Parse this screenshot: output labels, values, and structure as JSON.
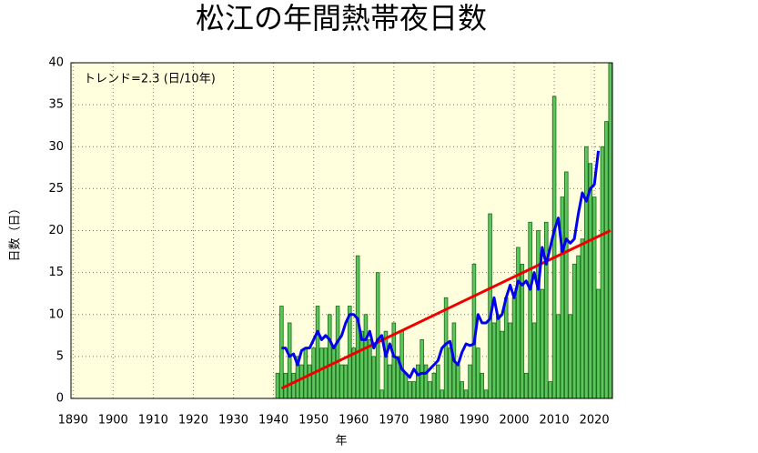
{
  "chart_data": {
    "type": "bar",
    "title": "松江の年間熱帯夜日数",
    "xlabel": "年",
    "ylabel": "日数（日）",
    "annotation": "トレンド=2.3 (日/10年)",
    "x": [
      1941,
      1942,
      1943,
      1944,
      1945,
      1946,
      1947,
      1948,
      1949,
      1950,
      1951,
      1952,
      1953,
      1954,
      1955,
      1956,
      1957,
      1958,
      1959,
      1960,
      1961,
      1962,
      1963,
      1964,
      1965,
      1966,
      1967,
      1968,
      1969,
      1970,
      1971,
      1972,
      1973,
      1974,
      1975,
      1976,
      1977,
      1978,
      1979,
      1980,
      1981,
      1982,
      1983,
      1984,
      1985,
      1986,
      1987,
      1988,
      1989,
      1990,
      1991,
      1992,
      1993,
      1994,
      1995,
      1996,
      1997,
      1998,
      1999,
      2000,
      2001,
      2002,
      2003,
      2004,
      2005,
      2006,
      2007,
      2008,
      2009,
      2010,
      2011,
      2012,
      2013,
      2014,
      2015,
      2016,
      2017,
      2018,
      2019,
      2020,
      2021,
      2022,
      2023,
      2024
    ],
    "values": [
      3,
      11,
      3,
      9,
      3,
      5,
      4,
      6,
      4,
      6,
      11,
      6,
      6,
      10,
      6,
      11,
      4,
      4,
      11,
      6,
      17,
      8,
      10,
      7,
      5,
      15,
      1,
      8,
      4,
      9,
      5,
      8,
      3,
      2,
      2,
      4,
      7,
      4,
      2,
      3,
      4,
      1,
      12,
      6,
      9,
      4,
      2,
      1,
      4,
      16,
      6,
      3,
      1,
      22,
      9,
      10,
      8,
      12,
      9,
      12,
      18,
      16,
      3,
      21,
      9,
      20,
      13,
      21,
      2,
      36,
      10,
      24,
      27,
      10,
      16,
      17,
      19,
      30,
      28,
      24,
      13,
      30,
      33,
      40
    ],
    "color": "#5cc65c",
    "moving_average": {
      "color": "#0000ee",
      "x": [
        1942,
        1943,
        1944,
        1945,
        1946,
        1947,
        1948,
        1949,
        1950,
        1951,
        1952,
        1953,
        1954,
        1955,
        1956,
        1957,
        1958,
        1959,
        1960,
        1961,
        1962,
        1963,
        1964,
        1965,
        1966,
        1967,
        1968,
        1969,
        1970,
        1971,
        1972,
        1973,
        1974,
        1975,
        1976,
        1977,
        1978,
        1979,
        1980,
        1981,
        1982,
        1983,
        1984,
        1985,
        1986,
        1987,
        1988,
        1989,
        1990,
        1991,
        1992,
        1993,
        1994,
        1995,
        1996,
        1997,
        1998,
        1999,
        2000,
        2001,
        2002,
        2003,
        2004,
        2005,
        2006,
        2007,
        2008,
        2009,
        2010,
        2011,
        2012,
        2013,
        2014,
        2015,
        2016,
        2017,
        2018,
        2019,
        2020,
        2021
      ],
      "values": [
        6,
        6,
        5,
        5.3,
        4,
        5.7,
        6,
        6,
        7,
        8,
        7,
        7.5,
        7,
        6,
        6.8,
        7.5,
        9,
        10,
        10,
        9.5,
        7,
        7,
        8,
        6,
        7,
        7.5,
        5,
        6.5,
        5,
        4.8,
        3.5,
        3,
        2.5,
        3.5,
        2.8,
        3,
        3,
        3.5,
        4,
        4.5,
        6,
        6.5,
        6.8,
        4.5,
        4,
        5.5,
        6.5,
        6.3,
        6.5,
        10,
        9,
        9,
        9.5,
        12,
        9.5,
        10,
        12,
        13.5,
        12,
        14,
        13.5,
        14,
        13,
        15,
        13,
        18,
        16,
        18,
        20,
        21.5,
        17.5,
        19,
        18.5,
        19,
        22,
        24.5,
        23.5,
        25,
        25.5,
        29.5
      ]
    },
    "trend": {
      "color": "#ee0000",
      "x": [
        1942,
        2024
      ],
      "values": [
        1.2,
        20
      ]
    },
    "xlim": [
      1889.5,
      2024.5
    ],
    "xticks": [
      1890,
      1900,
      1910,
      1920,
      1930,
      1940,
      1950,
      1960,
      1970,
      1980,
      1990,
      2000,
      2010,
      2020
    ],
    "ylim": [
      0,
      40
    ],
    "yticks": [
      0,
      5,
      10,
      15,
      20,
      25,
      30,
      35,
      40
    ],
    "grid": true,
    "background": "#ffffdd"
  }
}
